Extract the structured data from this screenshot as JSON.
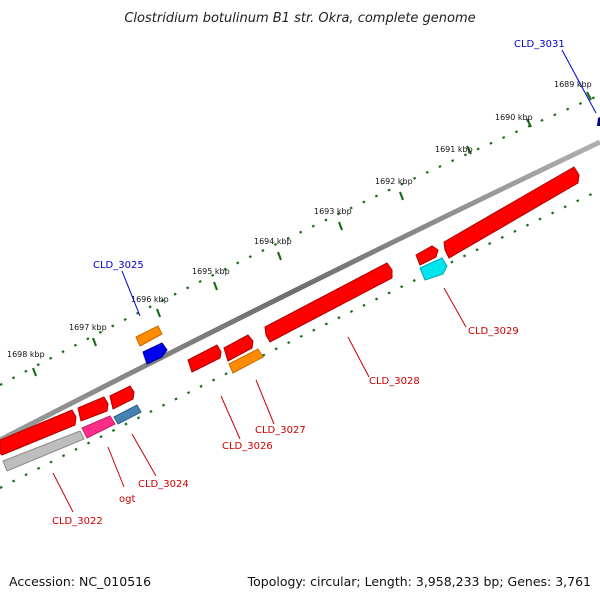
{
  "title": "Clostridium botulinum B1 str. Okra, complete genome",
  "footer": {
    "accession": "Accession: NC_010516",
    "summary": "Topology: circular; Length: 3,958,233 bp; Genes: 3,761"
  },
  "colors": {
    "backbone": "#808080",
    "tick_outer": "#1a6e1a",
    "cds": "#ff0000",
    "trna": "#ff8c00",
    "rrna_blue": "#0000ee",
    "cyan_feature": "#00e5ee",
    "pink_feature": "#ff2d8a",
    "steel_feature": "#4682b4",
    "gray_feature": "#bdbdbd",
    "label_red": "#cc0000",
    "label_blue": "#0000cc"
  },
  "scale_labels": [
    "1689 kbp",
    "1690 kbp",
    "1691 kbp",
    "1692 kbp",
    "1693 kbp",
    "1694 kbp",
    "1695 kbp",
    "1696 kbp",
    "1697 kbp",
    "1698 kbp"
  ],
  "gene_labels": {
    "cld_3031": "CLD_3031",
    "cld_3025": "CLD_3025",
    "cld_3029": "CLD_3029",
    "cld_3028": "CLD_3028",
    "cld_3027": "CLD_3027",
    "cld_3026": "CLD_3026",
    "cld_3024": "CLD_3024",
    "ogt": "ogt",
    "cld_3022": "CLD_3022"
  }
}
